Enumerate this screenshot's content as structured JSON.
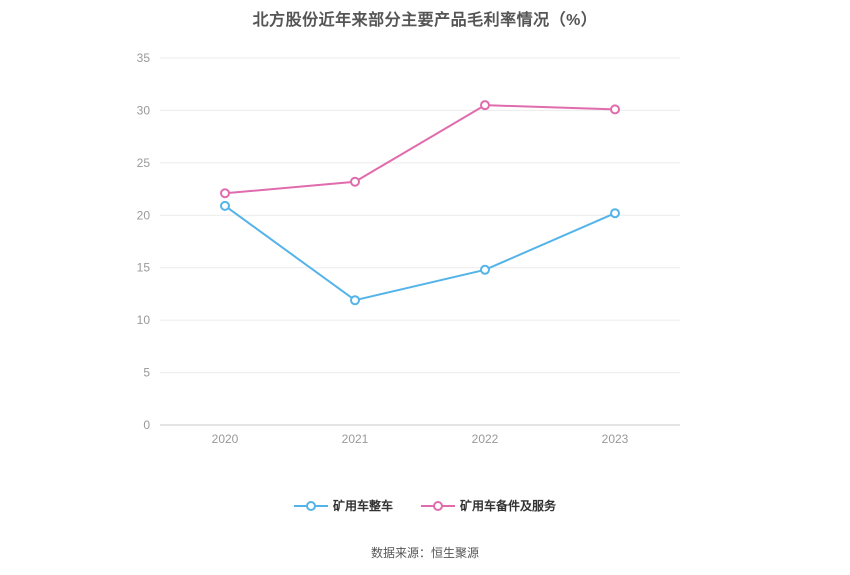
{
  "title": "北方股份近年来部分主要产品毛利率情况（%）",
  "footer": "数据来源：恒生聚源",
  "chart_data": {
    "type": "line",
    "categories": [
      "2020",
      "2021",
      "2022",
      "2023"
    ],
    "series": [
      {
        "name": "矿用车整车",
        "color": "#54b4e9",
        "values": [
          20.9,
          11.9,
          14.8,
          20.2
        ]
      },
      {
        "name": "矿用车备件及服务",
        "color": "#e06cad",
        "values": [
          22.1,
          23.2,
          30.5,
          30.1
        ]
      }
    ],
    "ylim": [
      0,
      35
    ],
    "yticks": [
      0,
      5,
      10,
      15,
      20,
      25,
      30,
      35
    ],
    "xlabel": "",
    "ylabel": "",
    "grid": true,
    "legend_position": "bottom",
    "marker": "open-circle",
    "grid_color": "#ebebeb",
    "axis_color": "#c9c9c9",
    "tick_label_color": "#999999"
  }
}
